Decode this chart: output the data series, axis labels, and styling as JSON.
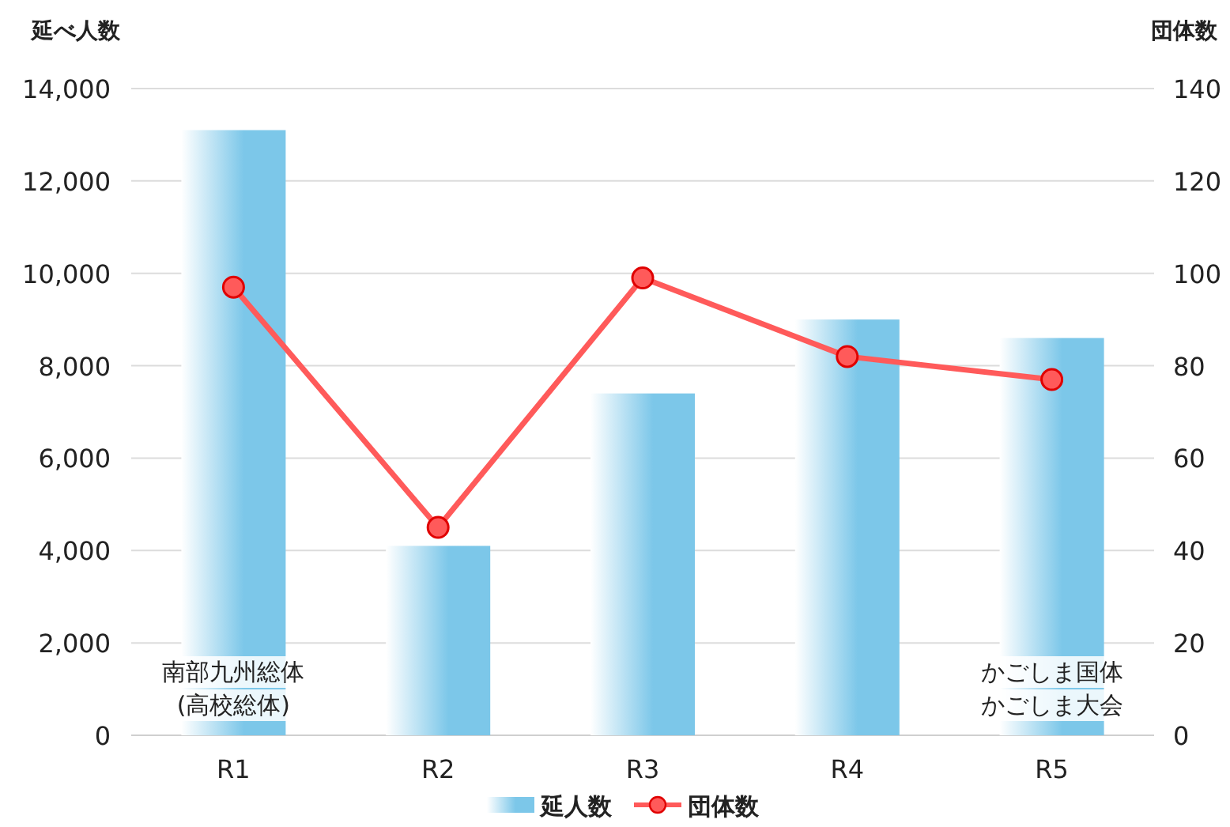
{
  "chart_data": {
    "type": "bar",
    "ylabel": "延べ人数",
    "y2label": "団体数",
    "categories": [
      "R1",
      "R2",
      "R3",
      "R4",
      "R5"
    ],
    "series": [
      {
        "name": "延人数",
        "color": "#7cc7e9",
        "values": [
          13100,
          4100,
          7400,
          9000,
          8600
        ]
      },
      {
        "name": "団体数",
        "type": "line",
        "axis": "y2",
        "color": "#ff5a5a",
        "marker": "circle",
        "values": [
          97,
          45,
          99,
          82,
          77
        ]
      }
    ],
    "ylim": [
      0,
      14000
    ],
    "yticks": [
      {
        "value": 0,
        "label": "0"
      },
      {
        "value": 2000,
        "label": "2,000"
      },
      {
        "value": 4000,
        "label": "4,000"
      },
      {
        "value": 6000,
        "label": "6,000"
      },
      {
        "value": 8000,
        "label": "8,000"
      },
      {
        "value": 10000,
        "label": "10,000"
      },
      {
        "value": 12000,
        "label": "12,000"
      },
      {
        "value": 14000,
        "label": "14,000"
      }
    ],
    "y2lim": [
      0,
      140
    ],
    "y2ticks": [
      0,
      20,
      40,
      60,
      80,
      100,
      120,
      140
    ],
    "grid": "y",
    "legend": "bottom",
    "annotations": [
      "南部九州総体",
      "(高校総体)",
      "かごしま国体",
      "かごしま大会"
    ]
  }
}
